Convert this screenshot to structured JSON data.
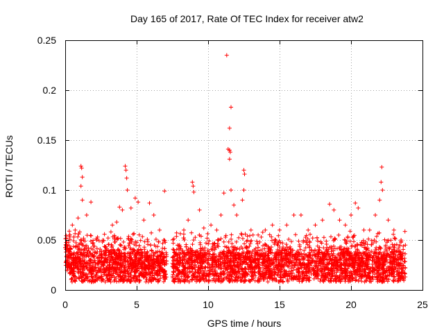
{
  "chart_data": {
    "type": "scatter",
    "title": "Day 165 of 2017, Rate Of TEC Index for receiver atw2",
    "xlabel": "GPS time / hours",
    "ylabel": "ROTI / TECUs",
    "xlim": [
      0,
      25
    ],
    "ylim": [
      0,
      0.25
    ],
    "x_ticks": [
      0,
      5,
      10,
      15,
      20,
      25
    ],
    "x_tick_labels": [
      "0",
      "5",
      "10",
      "15",
      "20",
      "25"
    ],
    "y_ticks": [
      0,
      0.05,
      0.1,
      0.15,
      0.2,
      0.25
    ],
    "y_tick_labels": [
      "0",
      "0.05",
      "0.1",
      "0.15",
      "0.2",
      "0.25"
    ],
    "grid": true,
    "marker": "+",
    "color": "#ff0000",
    "data_gap_hours": [
      7.1,
      7.5
    ],
    "series": [
      {
        "name": "ROTI",
        "points": [
          [
            0.1,
            0.045
          ],
          [
            0.3,
            0.055
          ],
          [
            0.5,
            0.065
          ],
          [
            0.7,
            0.06
          ],
          [
            0.9,
            0.072
          ],
          [
            1.1,
            0.124
          ],
          [
            1.15,
            0.122
          ],
          [
            1.2,
            0.113
          ],
          [
            1.1,
            0.104
          ],
          [
            1.2,
            0.09
          ],
          [
            1.5,
            0.075
          ],
          [
            1.8,
            0.088
          ],
          [
            2.2,
            0.05
          ],
          [
            2.6,
            0.048
          ],
          [
            3.0,
            0.052
          ],
          [
            3.3,
            0.065
          ],
          [
            3.6,
            0.068
          ],
          [
            3.8,
            0.083
          ],
          [
            4.0,
            0.08
          ],
          [
            4.2,
            0.124
          ],
          [
            4.25,
            0.12
          ],
          [
            4.3,
            0.112
          ],
          [
            4.35,
            0.1
          ],
          [
            4.6,
            0.082
          ],
          [
            4.9,
            0.092
          ],
          [
            5.1,
            0.088
          ],
          [
            5.5,
            0.07
          ],
          [
            5.9,
            0.087
          ],
          [
            6.2,
            0.075
          ],
          [
            6.6,
            0.06
          ],
          [
            6.9,
            0.05
          ],
          [
            6.95,
            0.099
          ],
          [
            7.6,
            0.04
          ],
          [
            8.0,
            0.045
          ],
          [
            8.3,
            0.06
          ],
          [
            8.6,
            0.07
          ],
          [
            8.9,
            0.108
          ],
          [
            8.95,
            0.104
          ],
          [
            9.0,
            0.098
          ],
          [
            9.4,
            0.08
          ],
          [
            9.7,
            0.062
          ],
          [
            10.2,
            0.065
          ],
          [
            10.6,
            0.06
          ],
          [
            10.9,
            0.075
          ],
          [
            11.1,
            0.097
          ],
          [
            11.3,
            0.235
          ],
          [
            11.6,
            0.183
          ],
          [
            11.5,
            0.162
          ],
          [
            11.4,
            0.141
          ],
          [
            11.5,
            0.14
          ],
          [
            11.55,
            0.138
          ],
          [
            11.5,
            0.131
          ],
          [
            11.6,
            0.1
          ],
          [
            11.8,
            0.085
          ],
          [
            12.0,
            0.075
          ],
          [
            12.5,
            0.12
          ],
          [
            12.55,
            0.116
          ],
          [
            12.5,
            0.1
          ],
          [
            12.4,
            0.09
          ],
          [
            13.0,
            0.06
          ],
          [
            13.5,
            0.055
          ],
          [
            14.0,
            0.06
          ],
          [
            14.5,
            0.065
          ],
          [
            15.0,
            0.06
          ],
          [
            15.5,
            0.065
          ],
          [
            16.0,
            0.075
          ],
          [
            16.5,
            0.075
          ],
          [
            17.0,
            0.06
          ],
          [
            17.5,
            0.065
          ],
          [
            18.0,
            0.07
          ],
          [
            18.5,
            0.086
          ],
          [
            18.8,
            0.08
          ],
          [
            19.2,
            0.07
          ],
          [
            19.6,
            0.065
          ],
          [
            20.0,
            0.075
          ],
          [
            20.3,
            0.087
          ],
          [
            20.5,
            0.082
          ],
          [
            20.9,
            0.06
          ],
          [
            21.3,
            0.06
          ],
          [
            21.7,
            0.075
          ],
          [
            22.0,
            0.09
          ],
          [
            22.1,
            0.108
          ],
          [
            22.15,
            0.123
          ],
          [
            22.2,
            0.1
          ],
          [
            22.6,
            0.07
          ],
          [
            23.0,
            0.06
          ],
          [
            23.5,
            0.05
          ],
          [
            23.8,
            0.045
          ]
        ]
      }
    ]
  }
}
